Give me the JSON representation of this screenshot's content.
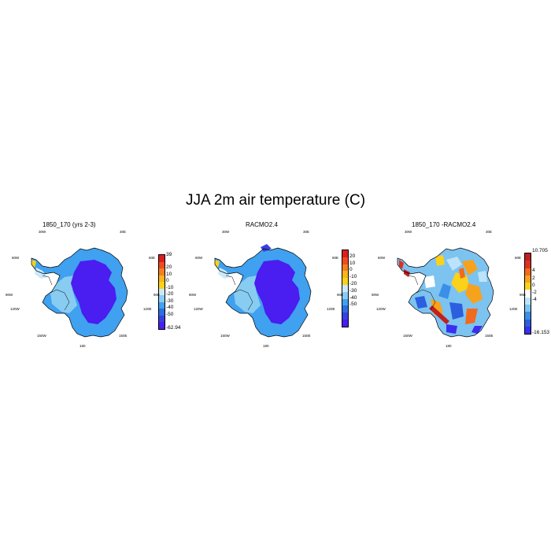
{
  "title": "JJA 2m air temperature (C)",
  "lon_labels": {
    "w30": "30W",
    "e30": "30E",
    "w60": "60W",
    "e60": "60E",
    "w90": "90W",
    "e90": "90E",
    "w120": "120W",
    "e120": "120E",
    "w150": "150W",
    "e150": "150E",
    "s180": "180"
  },
  "panels": [
    {
      "title": "1850_170 (yrs 2-3)",
      "colors": [
        "#d9201f",
        "#f24a1e",
        "#f57e20",
        "#fbb41b",
        "#fbd11a",
        "#cbe9fb",
        "#88ccf2",
        "#3fa1ef",
        "#2b6fe0",
        "#3b3ee0",
        "#4a1df0"
      ],
      "tick_labels": [
        "39",
        "20",
        "10",
        "0",
        "-10",
        "-20",
        "-30",
        "-40",
        "-50",
        "-62.94"
      ]
    },
    {
      "title": "RACMO2.4",
      "colors": [
        "#d9201f",
        "#f24a1e",
        "#f57e20",
        "#fbb41b",
        "#fbd11a",
        "#cbe9fb",
        "#88ccf2",
        "#3fa1ef",
        "#2b6fe0",
        "#3b3ee0",
        "#4a1df0"
      ],
      "tick_labels": [
        "20",
        "10",
        "0",
        "-10",
        "-20",
        "-30",
        "-40",
        "-50"
      ]
    },
    {
      "title": "1850_170 -RACMO2.4",
      "colors": [
        "#c0201f",
        "#e0301f",
        "#f26a1e",
        "#f7a21c",
        "#fbd11a",
        "#ffffff",
        "#bde3fa",
        "#7cc3f0",
        "#3b8fe8",
        "#2b5fe0",
        "#3b2ef0"
      ],
      "tick_labels": [
        "10.705",
        "4",
        "2",
        "0",
        "-2",
        "-4",
        "-16.153"
      ]
    }
  ]
}
